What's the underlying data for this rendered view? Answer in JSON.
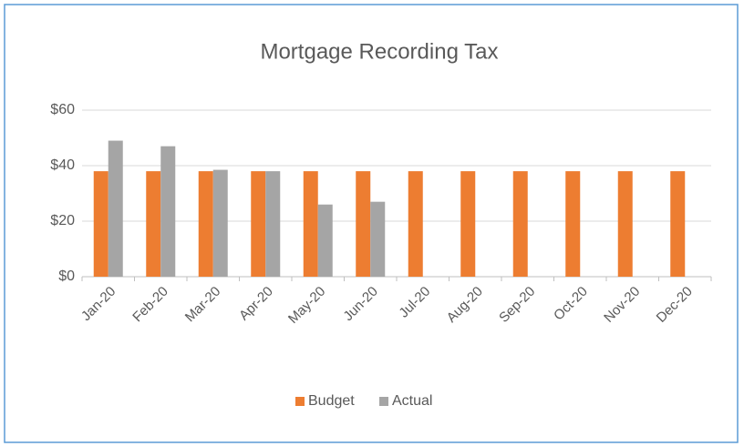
{
  "chart_data": {
    "type": "bar",
    "title": "Mortgage Recording Tax",
    "categories": [
      "Jan-20",
      "Feb-20",
      "Mar-20",
      "Apr-20",
      "May-20",
      "Jun-20",
      "Jul-20",
      "Aug-20",
      "Sep-20",
      "Oct-20",
      "Nov-20",
      "Dec-20"
    ],
    "series": [
      {
        "name": "Budget",
        "color": "#ed7d31",
        "values": [
          38,
          38,
          38,
          38,
          38,
          38,
          38,
          38,
          38,
          38,
          38,
          38
        ]
      },
      {
        "name": "Actual",
        "color": "#a5a5a5",
        "values": [
          49,
          47,
          38.5,
          38,
          26,
          27,
          null,
          null,
          null,
          null,
          null,
          null
        ]
      }
    ],
    "ylim": [
      0,
      60
    ],
    "yticks": [
      {
        "value": 0,
        "label": "$0"
      },
      {
        "value": 20,
        "label": "$20"
      },
      {
        "value": 40,
        "label": "$40"
      },
      {
        "value": 60,
        "label": "$60"
      }
    ],
    "grid": true,
    "legend": "bottom"
  }
}
